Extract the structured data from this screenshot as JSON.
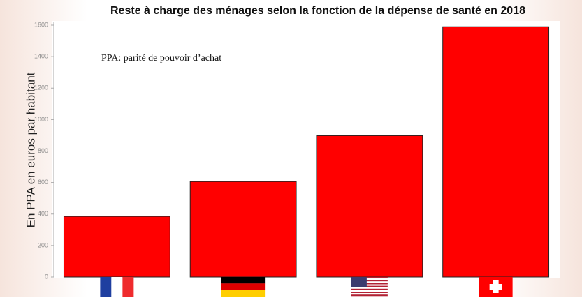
{
  "chart_data": {
    "type": "bar",
    "title": "Reste à charge des ménages selon la fonction de la dépense de santé en 2018",
    "y_label": "En PPA en euros par habitant",
    "annotation": "PPA: parité de pouvoir d’achat",
    "categories": [
      null,
      null,
      null,
      null
    ],
    "values": [
      385,
      606,
      898,
      1590
    ],
    "color": "#ff0000",
    "ylim": [
      0,
      1600
    ],
    "yticks": [
      0,
      200,
      400,
      600,
      800,
      1000,
      1200,
      1400,
      1600
    ],
    "grid": false
  }
}
